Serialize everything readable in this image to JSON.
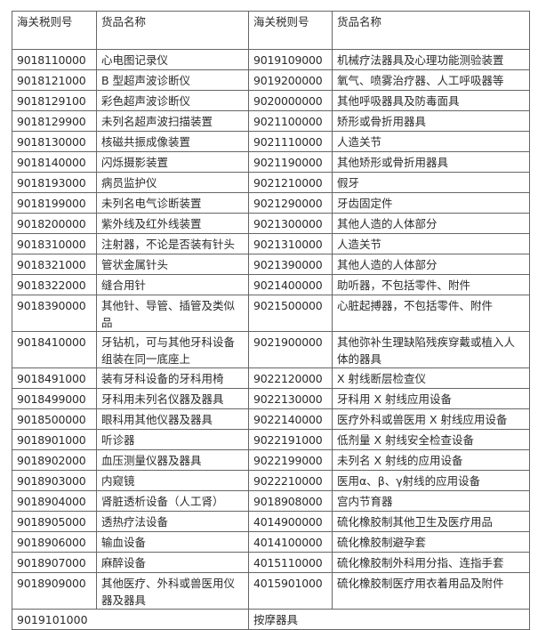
{
  "header": [
    "海关税则号",
    "货品名称",
    "海关税则号",
    "货品名称"
  ],
  "rows": [
    [
      "9018110000",
      "心电图记录仪",
      "9019109000",
      "机械疗法器具及心理功能测验装置"
    ],
    [
      "9018121000",
      "B 型超声波诊断仪",
      "9019200000",
      "氧气、喷雾治疗器、人工呼吸器等"
    ],
    [
      "9018129100",
      "彩色超声波诊断仪",
      "9020000000",
      "其他呼吸器具及防毒面具"
    ],
    [
      "9018129900",
      "未列名超声波扫描装置",
      "9021100000",
      "矫形或骨折用器具"
    ],
    [
      "9018130000",
      "核磁共振成像装置",
      "9021110000",
      "人造关节"
    ],
    [
      "9018140000",
      "闪烁摄影装置",
      "9021190000",
      "其他矫形或骨折用器具"
    ],
    [
      "9018193000",
      "病员监护仪",
      "9021210000",
      "假牙"
    ],
    [
      "9018199000",
      "未列名电气诊断装置",
      "9021290000",
      "牙齿固定件"
    ],
    [
      "9018200000",
      "紫外线及红外线装置",
      "9021300000",
      "其他人造的人体部分"
    ],
    [
      "9018310000",
      "注射器，不论是否装有针头",
      "9021310000",
      "人造关节"
    ],
    [
      "9018321000",
      "管状金属针头",
      "9021390000",
      "其他人造的人体部分"
    ],
    [
      "9018322000",
      "缝合用针",
      "9021400000",
      "助听器，不包括零件、附件"
    ],
    [
      "9018390000",
      "其他针、导管、插管及类似品",
      "9021500000",
      "心脏起搏器，不包括零件、附件"
    ],
    [
      "9018410000",
      "牙钻机，可与其他牙科设备组装在同一底座上",
      "9021900000",
      "其他弥补生理缺陷残疾穿戴或植入人体的器具"
    ],
    [
      "9018491000",
      "装有牙科设备的牙科用椅",
      "9022120000",
      "X 射线断层检查仪"
    ],
    [
      "9018499000",
      "牙科用未列名仪器及器具",
      "9022130000",
      "牙科用 X 射线应用设备"
    ],
    [
      "9018500000",
      "眼科用其他仪器及器具",
      "9022140000",
      "医疗外科或兽医用 X 射线应用设备"
    ],
    [
      "9018901000",
      "听诊器",
      "9022191000",
      "低剂量 X 射线安全检查设备"
    ],
    [
      "9018902000",
      "血压测量仪器及器具",
      "9022199000",
      "未列名 X 射线的应用设备"
    ],
    [
      "9018903000",
      "内窥镜",
      "9022210000",
      "医用α、β、γ射线的应用设备"
    ],
    [
      "9018904000",
      "肾脏透析设备（人工肾）",
      "9018908000",
      "宫内节育器"
    ],
    [
      "9018905000",
      "透热疗法设备",
      "4014900000",
      "硫化橡胶制其他卫生及医疗用品"
    ],
    [
      "9018906000",
      "输血设备",
      "4014100000",
      "硫化橡胶制避孕套"
    ],
    [
      "9018907000",
      "麻醉设备",
      "4015110000",
      "硫化橡胶制外科用分指、连指手套"
    ],
    [
      "9018909000",
      "其他医疗、外科或兽医用仪器及器具",
      "4015901000",
      "硫化橡胶制医疗用衣着用品及附件"
    ]
  ],
  "last_row": [
    "9019101000",
    "按摩器具"
  ]
}
